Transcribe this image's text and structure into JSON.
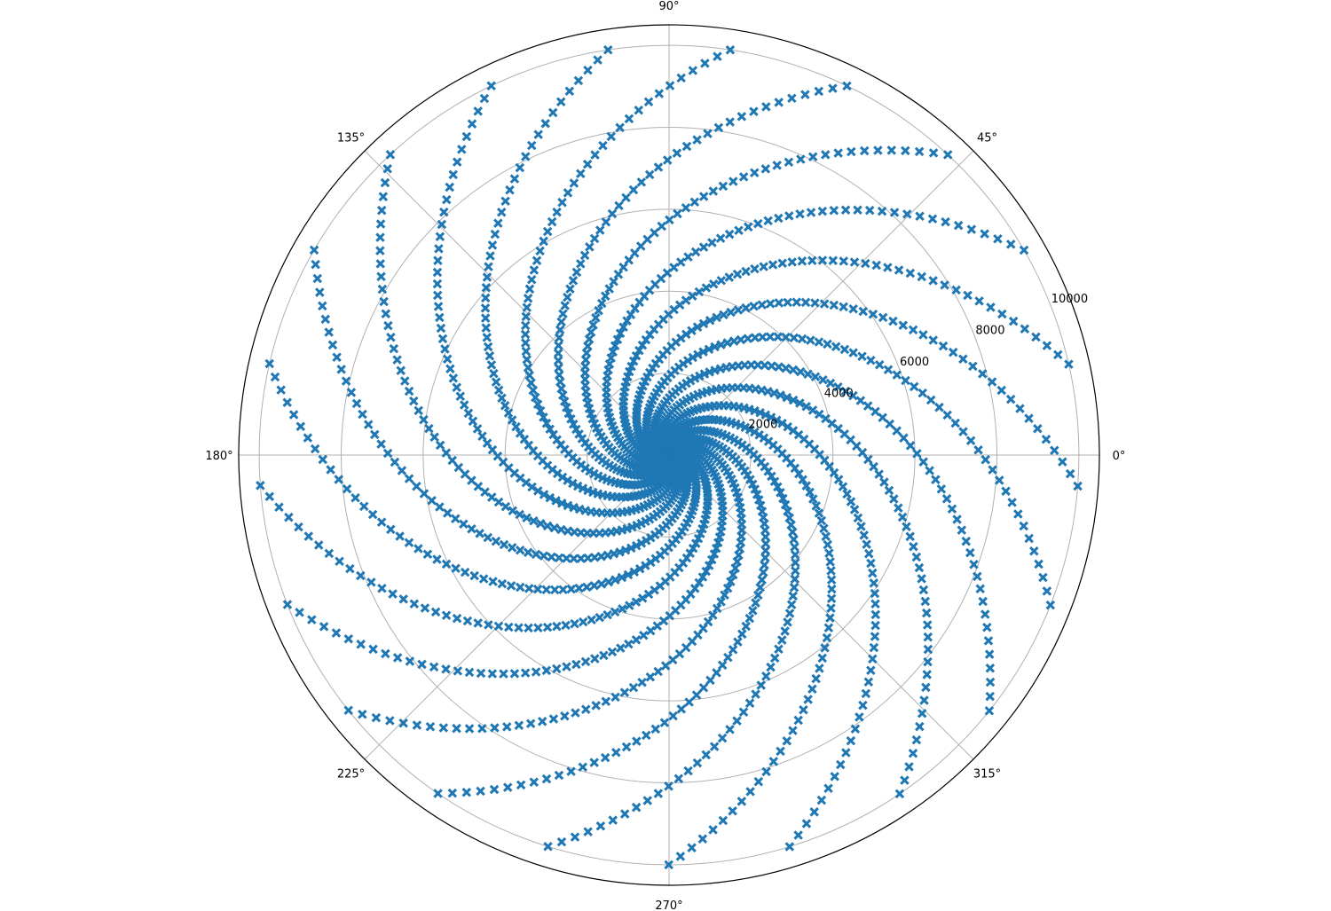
{
  "chart_data": {
    "type": "scatter",
    "projection": "polar",
    "title": "",
    "marker": "X",
    "color": "#1f77b4",
    "grid": true,
    "rlim": [
      0,
      10500
    ],
    "r_ticks": [
      2000,
      4000,
      6000,
      8000,
      10000
    ],
    "r_tick_labels": [
      "2000",
      "4000",
      "6000",
      "8000",
      "10000"
    ],
    "theta_ticks_deg": [
      0,
      45,
      90,
      135,
      180,
      225,
      270,
      315
    ],
    "theta_tick_labels": [
      "0°",
      "45°",
      "90°",
      "135°",
      "180°",
      "225°",
      "270°",
      "315°"
    ],
    "series": [
      {
        "description_of_generation": "spiral pattern of points",
        "n_arms": 21,
        "points_per_arm": 100,
        "r_min": 1,
        "r_max": 10000,
        "r_spacing": "quadratic",
        "twist_deg_total": 600,
        "arm_offset_deg": 17.14
      }
    ]
  }
}
